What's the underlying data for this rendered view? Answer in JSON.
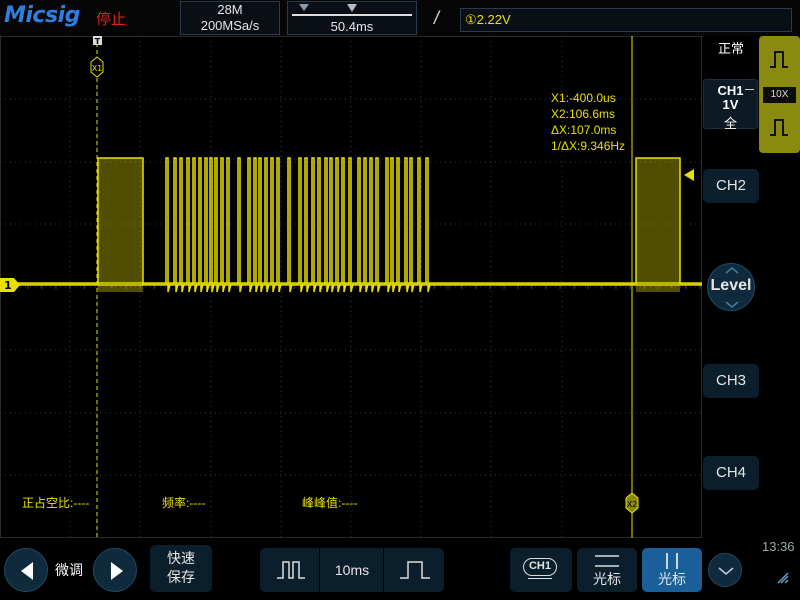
{
  "header": {
    "brand": "Micsig",
    "run_status": "停止",
    "memory_depth": "28M",
    "sample_rate": "200MSa/s",
    "time_position": "50.4ms",
    "trigger_source": "①",
    "trigger_level": "2.22V"
  },
  "right_panel": {
    "acq_mode": "正常",
    "ch1": {
      "label": "CH1",
      "scale": "1V",
      "coupling": "全",
      "probe": "10X"
    },
    "ch2_label": "CH2",
    "level_label": "Level",
    "ch3_label": "CH3",
    "ch4_label": "CH4",
    "clock": "13:36"
  },
  "cursors": {
    "x1_label": "X1",
    "x2_label": "X2",
    "readout": [
      "X1:-400.0us",
      "X2:106.6ms",
      "ΔX:107.0ms",
      "1/ΔX:9.346Hz"
    ]
  },
  "channel_marker": "1",
  "measurements": [
    {
      "label": "正占空比:----"
    },
    {
      "label": "频率:----"
    },
    {
      "label": "峰峰值:----"
    }
  ],
  "bottom": {
    "fine_label": "微调",
    "save_label_1": "快速",
    "save_label_2": "保存",
    "timebase": "10ms",
    "ch1_source": "CH1",
    "cursor_label_1": "光标",
    "cursor_label_2": "光标"
  },
  "colors": {
    "ch1": "#e8e000",
    "accent": "#1a5f99",
    "button_bg": "#0b1e2b",
    "grid": "#2b2b2b"
  }
}
